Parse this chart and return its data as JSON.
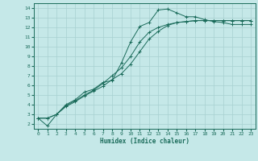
{
  "xlabel": "Humidex (Indice chaleur)",
  "bg_color": "#c5e8e8",
  "line_color": "#1a6b5a",
  "grid_color": "#a8d0d0",
  "xlim": [
    -0.5,
    23.5
  ],
  "ylim": [
    1.5,
    14.5
  ],
  "xticks": [
    0,
    1,
    2,
    3,
    4,
    5,
    6,
    7,
    8,
    9,
    10,
    11,
    12,
    13,
    14,
    15,
    16,
    17,
    18,
    19,
    20,
    21,
    22,
    23
  ],
  "yticks": [
    2,
    3,
    4,
    5,
    6,
    7,
    8,
    9,
    10,
    11,
    12,
    13,
    14
  ],
  "series1": [
    [
      0,
      2.6
    ],
    [
      1,
      1.8
    ],
    [
      2,
      3.0
    ],
    [
      3,
      4.0
    ],
    [
      4,
      4.5
    ],
    [
      5,
      5.3
    ],
    [
      6,
      5.6
    ],
    [
      7,
      6.3
    ],
    [
      8,
      6.5
    ],
    [
      9,
      8.3
    ],
    [
      10,
      10.5
    ],
    [
      11,
      12.1
    ],
    [
      12,
      12.5
    ],
    [
      13,
      13.8
    ],
    [
      14,
      13.9
    ],
    [
      15,
      13.5
    ],
    [
      16,
      13.1
    ],
    [
      17,
      13.1
    ],
    [
      18,
      12.8
    ],
    [
      19,
      12.6
    ],
    [
      20,
      12.5
    ],
    [
      21,
      12.3
    ],
    [
      22,
      12.3
    ],
    [
      23,
      12.3
    ]
  ],
  "series2": [
    [
      0,
      2.6
    ],
    [
      1,
      2.6
    ],
    [
      2,
      3.0
    ],
    [
      3,
      3.8
    ],
    [
      4,
      4.3
    ],
    [
      5,
      4.9
    ],
    [
      6,
      5.4
    ],
    [
      7,
      5.9
    ],
    [
      8,
      6.6
    ],
    [
      9,
      7.2
    ],
    [
      10,
      8.2
    ],
    [
      11,
      9.5
    ],
    [
      12,
      10.8
    ],
    [
      13,
      11.6
    ],
    [
      14,
      12.2
    ],
    [
      15,
      12.5
    ],
    [
      16,
      12.6
    ],
    [
      17,
      12.7
    ],
    [
      18,
      12.7
    ],
    [
      19,
      12.7
    ],
    [
      20,
      12.7
    ],
    [
      21,
      12.7
    ],
    [
      22,
      12.7
    ],
    [
      23,
      12.7
    ]
  ],
  "series3": [
    [
      0,
      2.6
    ],
    [
      1,
      2.6
    ],
    [
      2,
      3.0
    ],
    [
      3,
      3.9
    ],
    [
      4,
      4.4
    ],
    [
      5,
      5.0
    ],
    [
      6,
      5.5
    ],
    [
      7,
      6.2
    ],
    [
      8,
      7.0
    ],
    [
      9,
      7.8
    ],
    [
      10,
      9.0
    ],
    [
      11,
      10.5
    ],
    [
      12,
      11.5
    ],
    [
      13,
      12.0
    ],
    [
      14,
      12.3
    ],
    [
      15,
      12.5
    ],
    [
      16,
      12.6
    ],
    [
      17,
      12.7
    ],
    [
      18,
      12.7
    ],
    [
      19,
      12.7
    ],
    [
      20,
      12.7
    ],
    [
      21,
      12.7
    ],
    [
      22,
      12.7
    ],
    [
      23,
      12.7
    ]
  ]
}
